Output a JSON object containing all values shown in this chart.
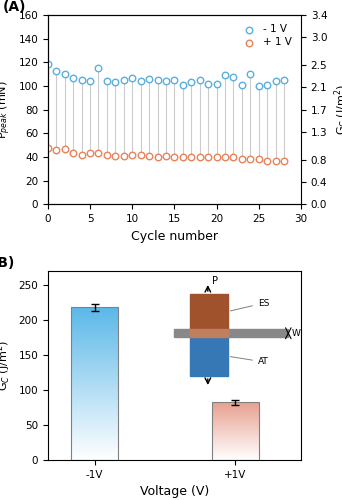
{
  "panel_A": {
    "title": "(A)",
    "xlabel": "Cycle number",
    "ylabel_left": "P$_{peak}$ (mN)",
    "ylabel_right": "G$_C$ (J/m$^2$)",
    "xlim": [
      0,
      30
    ],
    "ylim_left": [
      0,
      160
    ],
    "ylim_right": [
      0.0,
      3.4
    ],
    "yticks_left": [
      0,
      20,
      40,
      60,
      80,
      100,
      120,
      140,
      160
    ],
    "yticks_right": [
      0.0,
      0.4,
      0.8,
      1.3,
      1.7,
      2.1,
      2.5,
      3.0,
      3.4
    ],
    "xticks": [
      0,
      5,
      10,
      15,
      20,
      25,
      30
    ],
    "neg1V_cycles": [
      0,
      1,
      2,
      3,
      4,
      5,
      6,
      7,
      8,
      9,
      10,
      11,
      12,
      13,
      14,
      15,
      16,
      17,
      18,
      19,
      20,
      21,
      22,
      23,
      24,
      25,
      26,
      27,
      28
    ],
    "neg1V_values": [
      119,
      113,
      110,
      107,
      105,
      104,
      115,
      104,
      103,
      105,
      107,
      104,
      106,
      105,
      104,
      105,
      101,
      103,
      105,
      102,
      102,
      109,
      108,
      101,
      110,
      100,
      101,
      104,
      105
    ],
    "pos1V_cycles": [
      0,
      1,
      2,
      3,
      4,
      5,
      6,
      7,
      8,
      9,
      10,
      11,
      12,
      13,
      14,
      15,
      16,
      17,
      18,
      19,
      20,
      21,
      22,
      23,
      24,
      25,
      26,
      27,
      28
    ],
    "pos1V_values": [
      48,
      46,
      47,
      43,
      42,
      43,
      43,
      42,
      41,
      41,
      42,
      42,
      41,
      40,
      41,
      40,
      40,
      40,
      40,
      40,
      40,
      40,
      40,
      38,
      38,
      38,
      37,
      37,
      37
    ],
    "neg1V_color": "#5AAFDF",
    "pos1V_color": "#E8825A",
    "line_color": "#CCCCCC",
    "legend_neg1V": "- 1 V",
    "legend_pos1V": "+ 1 V"
  },
  "panel_B": {
    "title": "(B)",
    "xlabel": "Voltage (V)",
    "ylabel": "G$_C$ (J/m$^2$)",
    "categories": [
      "-1V",
      "+1V"
    ],
    "values": [
      218,
      82
    ],
    "errors": [
      5,
      4
    ],
    "ylim": [
      0,
      270
    ],
    "yticks": [
      0,
      50,
      100,
      150,
      200,
      250
    ],
    "bar_color_neg": [
      "#5BB8E8",
      "#FFFFFF"
    ],
    "bar_color_pos": [
      "#E8A090",
      "#FFFFFF"
    ],
    "bar_width": 0.5
  }
}
